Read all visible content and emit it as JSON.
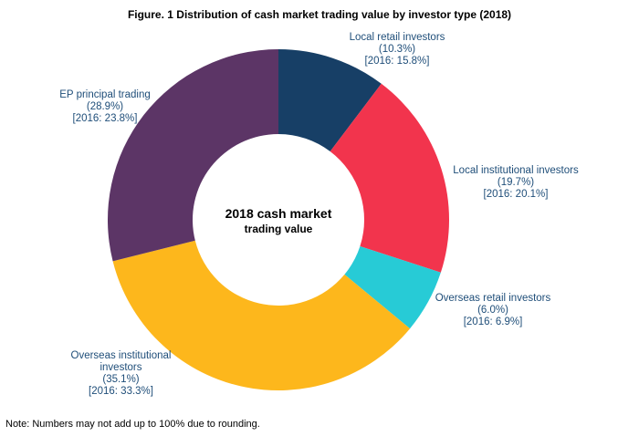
{
  "title": "Figure. 1 Distribution of cash market trading value by investor type (2018)",
  "center_text": {
    "line1": "2018 cash market",
    "line2": "trading value"
  },
  "note": "Note: Numbers may not add up to 100% due to rounding.",
  "chart_data": {
    "type": "pie",
    "donut": true,
    "title": "Figure. 1 Distribution of cash market trading value by investor type (2018)",
    "slices": [
      {
        "label": "Local retail investors",
        "label_lines": [
          "Local retail investors"
        ],
        "value": 10.3,
        "value_text": "(10.3%)",
        "prior_text": "[2016: 15.8%]",
        "prior_value": 15.8,
        "color": "#173f66"
      },
      {
        "label": "Local institutional investors",
        "label_lines": [
          "Local institutional investors"
        ],
        "value": 19.7,
        "value_text": "(19.7%)",
        "prior_text": "[2016: 20.1%]",
        "prior_value": 20.1,
        "color": "#f2344d"
      },
      {
        "label": "Overseas retail investors",
        "label_lines": [
          "Overseas retail investors"
        ],
        "value": 6.0,
        "value_text": "(6.0%)",
        "prior_text": "[2016: 6.9%]",
        "prior_value": 6.9,
        "color": "#27cbd6"
      },
      {
        "label": "Overseas institutional investors",
        "label_lines": [
          "Overseas institutional",
          "investors"
        ],
        "value": 35.1,
        "value_text": "(35.1%)",
        "prior_text": "[2016: 33.3%]",
        "prior_value": 33.3,
        "color": "#fdb71c"
      },
      {
        "label": "EP principal trading",
        "label_lines": [
          "EP principal trading"
        ],
        "value": 28.9,
        "value_text": "(28.9%)",
        "prior_text": "[2016: 23.8%]",
        "prior_value": 23.8,
        "color": "#5c3566"
      }
    ],
    "legend": "none",
    "label_color": "#1f4e79"
  }
}
